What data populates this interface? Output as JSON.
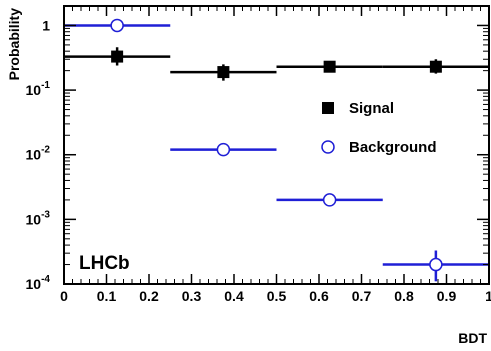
{
  "chart_data": {
    "type": "scatter",
    "xlabel": "BDT",
    "ylabel": "Probability",
    "xlim": [
      0,
      1
    ],
    "ylim": [
      0.0001,
      2
    ],
    "y_scale": "log",
    "grid": false,
    "legend_position": "center-right",
    "annotation": "LHCb",
    "x_ticks": [
      {
        "value": 0,
        "label": "0"
      },
      {
        "value": 0.1,
        "label": "0.1"
      },
      {
        "value": 0.2,
        "label": "0.2"
      },
      {
        "value": 0.3,
        "label": "0.3"
      },
      {
        "value": 0.4,
        "label": "0.4"
      },
      {
        "value": 0.5,
        "label": "0.5"
      },
      {
        "value": 0.6,
        "label": "0.6"
      },
      {
        "value": 0.7,
        "label": "0.7"
      },
      {
        "value": 0.8,
        "label": "0.8"
      },
      {
        "value": 0.9,
        "label": "0.9"
      },
      {
        "value": 1,
        "label": "1"
      }
    ],
    "y_ticks": [
      {
        "value": 1,
        "base": "1",
        "exp": ""
      },
      {
        "value": 0.1,
        "base": "10",
        "exp": "-1"
      },
      {
        "value": 0.01,
        "base": "10",
        "exp": "-2"
      },
      {
        "value": 0.001,
        "base": "10",
        "exp": "-3"
      },
      {
        "value": 0.0001,
        "base": "10",
        "exp": "-4"
      }
    ],
    "series": [
      {
        "name": "Signal",
        "marker": "filled-square",
        "color": "#000000",
        "points": [
          {
            "x_low": 0.0,
            "x_high": 0.25,
            "y": 0.33,
            "y_low": 0.24,
            "y_high": 0.46
          },
          {
            "x_low": 0.25,
            "x_high": 0.5,
            "y": 0.19,
            "y_low": 0.14,
            "y_high": 0.25
          },
          {
            "x_low": 0.5,
            "x_high": 0.75,
            "y": 0.23,
            "y_low": 0.21,
            "y_high": 0.26
          },
          {
            "x_low": 0.75,
            "x_high": 1.0,
            "y": 0.23,
            "y_low": 0.18,
            "y_high": 0.3
          }
        ]
      },
      {
        "name": "Background",
        "marker": "open-circle",
        "color": "#1f1fd6",
        "points": [
          {
            "x_low": 0.0,
            "x_high": 0.25,
            "y": 1.0,
            "y_low": 1.0,
            "y_high": 1.0
          },
          {
            "x_low": 0.25,
            "x_high": 0.5,
            "y": 0.012,
            "y_low": 0.012,
            "y_high": 0.012
          },
          {
            "x_low": 0.5,
            "x_high": 0.75,
            "y": 0.002,
            "y_low": 0.002,
            "y_high": 0.002
          },
          {
            "x_low": 0.75,
            "x_high": 1.0,
            "y": 0.0002,
            "y_low": 0.00011,
            "y_high": 0.00033
          }
        ]
      }
    ]
  }
}
